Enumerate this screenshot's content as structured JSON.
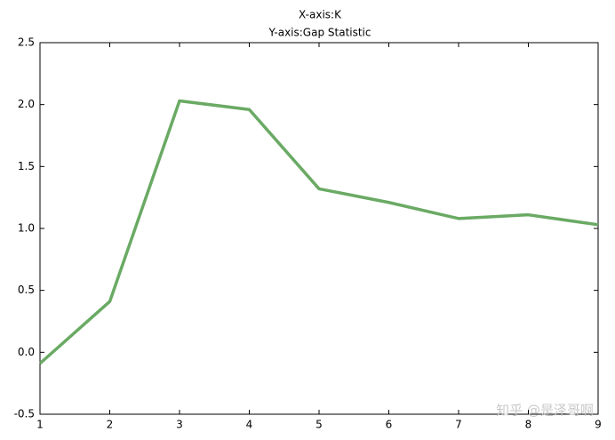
{
  "chart_data": {
    "type": "line",
    "title": "X-axis:K",
    "subtitle": "Y-axis:Gap Statistic",
    "x": [
      1,
      2,
      3,
      4,
      5,
      6,
      7,
      8,
      9
    ],
    "values": [
      -0.09,
      0.41,
      2.03,
      1.96,
      1.32,
      1.21,
      1.08,
      1.11,
      1.03
    ],
    "color": "#6aaa64",
    "xlim": [
      1,
      9
    ],
    "xticks": [
      1,
      2,
      3,
      4,
      5,
      6,
      7,
      8,
      9
    ],
    "ylim": [
      -0.5,
      2.5
    ],
    "yticks": [
      -0.5,
      {
        "value": 0,
        "label": "0.0"
      },
      0.5,
      {
        "value": 1,
        "label": "1.0"
      },
      1.5,
      {
        "value": 2,
        "label": "2.0"
      },
      2.5
    ],
    "watermark": "知乎 @是泽哥啊"
  }
}
